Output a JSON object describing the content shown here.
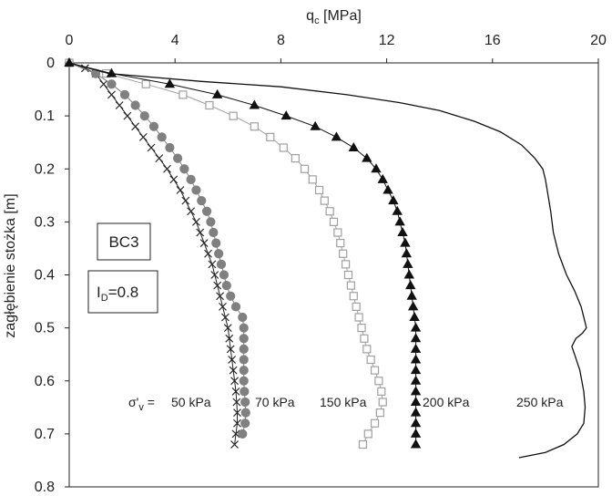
{
  "chart_data": {
    "type": "line",
    "x_axis": {
      "title_main": "q",
      "title_sub": "c",
      "title_unit": " [MPa]",
      "range": [
        0,
        20
      ],
      "ticks": [
        "0",
        "4",
        "8",
        "12",
        "16",
        "20"
      ],
      "position": "top"
    },
    "y_axis": {
      "title": "zagłębienie stożka [m]",
      "range": [
        0,
        0.8
      ],
      "ticks": [
        "0",
        "0.1",
        "0.2",
        "0.3",
        "0.4",
        "0.5",
        "0.6",
        "0.7",
        "0.8"
      ],
      "inverted": true
    },
    "boxes": {
      "sample": "BC3",
      "density_main": "I",
      "density_sub": "D",
      "density_value": "=0.8"
    },
    "stress_label": {
      "main": "σ'",
      "sub": "v",
      "eq": " ="
    },
    "colors": {
      "s50": "#222222",
      "s70": "#808080",
      "s150": "#a0a0a0",
      "s200": "#111111",
      "s250": "#111111"
    },
    "series": [
      {
        "name": "50 kPa",
        "marker": "x",
        "points": [
          [
            0,
            0
          ],
          [
            0.6,
            0.01
          ],
          [
            1.0,
            0.02
          ],
          [
            1.3,
            0.04
          ],
          [
            1.6,
            0.06
          ],
          [
            1.9,
            0.08
          ],
          [
            2.2,
            0.1
          ],
          [
            2.5,
            0.12
          ],
          [
            2.8,
            0.14
          ],
          [
            3.1,
            0.16
          ],
          [
            3.4,
            0.18
          ],
          [
            3.7,
            0.2
          ],
          [
            3.95,
            0.22
          ],
          [
            4.2,
            0.24
          ],
          [
            4.4,
            0.26
          ],
          [
            4.6,
            0.28
          ],
          [
            4.8,
            0.3
          ],
          [
            4.95,
            0.32
          ],
          [
            5.1,
            0.34
          ],
          [
            5.25,
            0.36
          ],
          [
            5.4,
            0.38
          ],
          [
            5.5,
            0.4
          ],
          [
            5.6,
            0.42
          ],
          [
            5.7,
            0.44
          ],
          [
            5.8,
            0.46
          ],
          [
            5.9,
            0.48
          ],
          [
            6.0,
            0.5
          ],
          [
            6.05,
            0.52
          ],
          [
            6.1,
            0.54
          ],
          [
            6.15,
            0.56
          ],
          [
            6.2,
            0.58
          ],
          [
            6.25,
            0.6
          ],
          [
            6.3,
            0.62
          ],
          [
            6.33,
            0.64
          ],
          [
            6.35,
            0.66
          ],
          [
            6.35,
            0.68
          ],
          [
            6.3,
            0.7
          ],
          [
            6.25,
            0.72
          ]
        ]
      },
      {
        "name": "70 kPa",
        "marker": "circle",
        "points": [
          [
            0,
            0
          ],
          [
            1.0,
            0.02
          ],
          [
            1.6,
            0.04
          ],
          [
            2.1,
            0.06
          ],
          [
            2.5,
            0.08
          ],
          [
            2.85,
            0.1
          ],
          [
            3.2,
            0.12
          ],
          [
            3.5,
            0.14
          ],
          [
            3.8,
            0.16
          ],
          [
            4.1,
            0.18
          ],
          [
            4.35,
            0.2
          ],
          [
            4.6,
            0.22
          ],
          [
            4.8,
            0.24
          ],
          [
            5.0,
            0.26
          ],
          [
            5.2,
            0.28
          ],
          [
            5.35,
            0.3
          ],
          [
            5.45,
            0.32
          ],
          [
            5.55,
            0.34
          ],
          [
            5.65,
            0.36
          ],
          [
            5.75,
            0.38
          ],
          [
            5.85,
            0.4
          ],
          [
            5.95,
            0.42
          ],
          [
            6.1,
            0.44
          ],
          [
            6.3,
            0.46
          ],
          [
            6.55,
            0.48
          ],
          [
            6.6,
            0.5
          ],
          [
            6.6,
            0.52
          ],
          [
            6.6,
            0.54
          ],
          [
            6.6,
            0.56
          ],
          [
            6.6,
            0.58
          ],
          [
            6.6,
            0.6
          ],
          [
            6.62,
            0.62
          ],
          [
            6.65,
            0.64
          ],
          [
            6.67,
            0.66
          ],
          [
            6.65,
            0.68
          ],
          [
            6.55,
            0.7
          ]
        ]
      },
      {
        "name": "150 kPa",
        "marker": "square",
        "points": [
          [
            0,
            0
          ],
          [
            1.4,
            0.02
          ],
          [
            2.9,
            0.04
          ],
          [
            4.3,
            0.06
          ],
          [
            5.3,
            0.08
          ],
          [
            6.2,
            0.1
          ],
          [
            7.0,
            0.12
          ],
          [
            7.6,
            0.14
          ],
          [
            8.1,
            0.16
          ],
          [
            8.55,
            0.18
          ],
          [
            8.9,
            0.2
          ],
          [
            9.2,
            0.22
          ],
          [
            9.45,
            0.24
          ],
          [
            9.65,
            0.26
          ],
          [
            9.85,
            0.28
          ],
          [
            10.0,
            0.3
          ],
          [
            10.15,
            0.32
          ],
          [
            10.25,
            0.34
          ],
          [
            10.35,
            0.36
          ],
          [
            10.45,
            0.38
          ],
          [
            10.55,
            0.4
          ],
          [
            10.65,
            0.42
          ],
          [
            10.75,
            0.44
          ],
          [
            10.85,
            0.46
          ],
          [
            10.95,
            0.48
          ],
          [
            11.05,
            0.5
          ],
          [
            11.15,
            0.52
          ],
          [
            11.25,
            0.54
          ],
          [
            11.4,
            0.56
          ],
          [
            11.55,
            0.58
          ],
          [
            11.7,
            0.6
          ],
          [
            11.8,
            0.62
          ],
          [
            11.85,
            0.64
          ],
          [
            11.75,
            0.66
          ],
          [
            11.55,
            0.68
          ],
          [
            11.3,
            0.7
          ],
          [
            11.1,
            0.72
          ]
        ]
      },
      {
        "name": "200 kPa",
        "marker": "triangle",
        "points": [
          [
            0,
            0
          ],
          [
            1.6,
            0.02
          ],
          [
            3.8,
            0.04
          ],
          [
            5.6,
            0.06
          ],
          [
            7.0,
            0.08
          ],
          [
            8.2,
            0.1
          ],
          [
            9.3,
            0.12
          ],
          [
            10.1,
            0.14
          ],
          [
            10.75,
            0.16
          ],
          [
            11.25,
            0.18
          ],
          [
            11.6,
            0.2
          ],
          [
            11.85,
            0.22
          ],
          [
            12.05,
            0.24
          ],
          [
            12.25,
            0.26
          ],
          [
            12.4,
            0.28
          ],
          [
            12.5,
            0.3
          ],
          [
            12.6,
            0.32
          ],
          [
            12.7,
            0.34
          ],
          [
            12.75,
            0.36
          ],
          [
            12.8,
            0.38
          ],
          [
            12.85,
            0.4
          ],
          [
            12.9,
            0.42
          ],
          [
            12.95,
            0.44
          ],
          [
            13.0,
            0.46
          ],
          [
            13.05,
            0.48
          ],
          [
            13.1,
            0.5
          ],
          [
            13.1,
            0.52
          ],
          [
            13.1,
            0.54
          ],
          [
            13.1,
            0.56
          ],
          [
            13.1,
            0.58
          ],
          [
            13.1,
            0.6
          ],
          [
            13.1,
            0.62
          ],
          [
            13.1,
            0.64
          ],
          [
            13.1,
            0.66
          ],
          [
            13.1,
            0.68
          ],
          [
            13.1,
            0.7
          ],
          [
            13.1,
            0.72
          ]
        ]
      },
      {
        "name": "250 kPa",
        "marker": "none",
        "points": [
          [
            0,
            0
          ],
          [
            1.5,
            0.02
          ],
          [
            5.0,
            0.035
          ],
          [
            8.0,
            0.045
          ],
          [
            10.5,
            0.06
          ],
          [
            12.5,
            0.075
          ],
          [
            14.0,
            0.09
          ],
          [
            15.3,
            0.11
          ],
          [
            16.3,
            0.13
          ],
          [
            17.1,
            0.155
          ],
          [
            17.6,
            0.18
          ],
          [
            17.9,
            0.2
          ],
          [
            18.0,
            0.22
          ],
          [
            18.1,
            0.25
          ],
          [
            18.2,
            0.28
          ],
          [
            18.3,
            0.32
          ],
          [
            18.5,
            0.36
          ],
          [
            18.8,
            0.4
          ],
          [
            19.1,
            0.43
          ],
          [
            19.35,
            0.46
          ],
          [
            19.5,
            0.49
          ],
          [
            19.55,
            0.5
          ],
          [
            19.4,
            0.51
          ],
          [
            19.15,
            0.52
          ],
          [
            19.0,
            0.535
          ],
          [
            19.1,
            0.55
          ],
          [
            19.3,
            0.58
          ],
          [
            19.45,
            0.62
          ],
          [
            19.5,
            0.65
          ],
          [
            19.45,
            0.68
          ],
          [
            19.2,
            0.7
          ],
          [
            18.7,
            0.72
          ],
          [
            18.0,
            0.735
          ],
          [
            17.0,
            0.745
          ]
        ]
      }
    ]
  }
}
